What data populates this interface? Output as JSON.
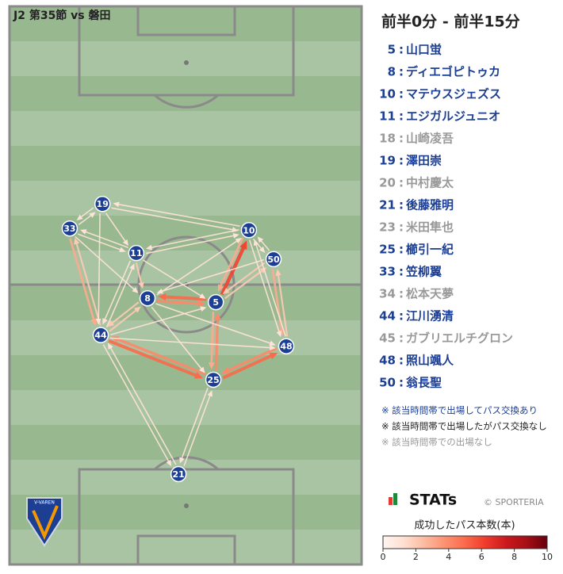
{
  "header": {
    "match": "J2 第35節 vs 磐田",
    "title": "前半0分 - 前半15分"
  },
  "nodes": [
    {
      "label": 19,
      "x": 26.4,
      "y": 35.4
    },
    {
      "label": 33,
      "x": 17.1,
      "y": 39.8
    },
    {
      "label": 10,
      "x": 68.0,
      "y": 40.1
    },
    {
      "label": 11,
      "x": 36.0,
      "y": 44.2
    },
    {
      "label": 50,
      "x": 75.0,
      "y": 45.3
    },
    {
      "label": 8,
      "x": 39.2,
      "y": 52.3
    },
    {
      "label": 5,
      "x": 58.6,
      "y": 53.0
    },
    {
      "label": 44,
      "x": 25.9,
      "y": 58.9
    },
    {
      "label": 48,
      "x": 78.6,
      "y": 60.9
    },
    {
      "label": 25,
      "x": 57.9,
      "y": 66.9
    },
    {
      "label": 21,
      "x": 48.0,
      "y": 83.8
    }
  ],
  "edges": [
    {
      "from": 6,
      "to": 2,
      "count": 6
    },
    {
      "from": 2,
      "to": 6,
      "count": 3
    },
    {
      "from": 6,
      "to": 5,
      "count": 5
    },
    {
      "from": 5,
      "to": 6,
      "count": 4
    },
    {
      "from": 7,
      "to": 9,
      "count": 5
    },
    {
      "from": 9,
      "to": 7,
      "count": 4
    },
    {
      "from": 9,
      "to": 8,
      "count": 5
    },
    {
      "from": 8,
      "to": 9,
      "count": 4
    },
    {
      "from": 6,
      "to": 9,
      "count": 3
    },
    {
      "from": 9,
      "to": 6,
      "count": 4
    },
    {
      "from": 4,
      "to": 8,
      "count": 3
    },
    {
      "from": 8,
      "to": 4,
      "count": 2
    },
    {
      "from": 1,
      "to": 7,
      "count": 3
    },
    {
      "from": 7,
      "to": 1,
      "count": 2
    },
    {
      "from": 4,
      "to": 6,
      "count": 2
    },
    {
      "from": 6,
      "to": 4,
      "count": 2
    },
    {
      "from": 3,
      "to": 5,
      "count": 2
    },
    {
      "from": 5,
      "to": 7,
      "count": 2
    },
    {
      "from": 7,
      "to": 5,
      "count": 2
    },
    {
      "from": 2,
      "to": 4,
      "count": 1
    },
    {
      "from": 4,
      "to": 2,
      "count": 1
    },
    {
      "from": 0,
      "to": 2,
      "count": 1
    },
    {
      "from": 2,
      "to": 0,
      "count": 1
    },
    {
      "from": 0,
      "to": 1,
      "count": 1
    },
    {
      "from": 1,
      "to": 0,
      "count": 1
    },
    {
      "from": 1,
      "to": 3,
      "count": 1
    },
    {
      "from": 3,
      "to": 1,
      "count": 1
    },
    {
      "from": 0,
      "to": 3,
      "count": 1
    },
    {
      "from": 1,
      "to": 5,
      "count": 1
    },
    {
      "from": 3,
      "to": 7,
      "count": 1
    },
    {
      "from": 7,
      "to": 3,
      "count": 1
    },
    {
      "from": 3,
      "to": 2,
      "count": 1
    },
    {
      "from": 2,
      "to": 3,
      "count": 1
    },
    {
      "from": 5,
      "to": 2,
      "count": 1
    },
    {
      "from": 3,
      "to": 6,
      "count": 1
    },
    {
      "from": 7,
      "to": 6,
      "count": 1
    },
    {
      "from": 7,
      "to": 8,
      "count": 1
    },
    {
      "from": 7,
      "to": 10,
      "count": 1
    },
    {
      "from": 10,
      "to": 7,
      "count": 1
    },
    {
      "from": 9,
      "to": 10,
      "count": 1
    },
    {
      "from": 10,
      "to": 9,
      "count": 1
    },
    {
      "from": 5,
      "to": 9,
      "count": 1
    },
    {
      "from": 5,
      "to": 8,
      "count": 1
    },
    {
      "from": 0,
      "to": 7,
      "count": 1
    },
    {
      "from": 8,
      "to": 2,
      "count": 1
    },
    {
      "from": 2,
      "to": 8,
      "count": 1
    },
    {
      "from": 4,
      "to": 5,
      "count": 1
    }
  ],
  "separator": ":",
  "players": [
    {
      "number": 5,
      "name": "山口蛍",
      "color": "#1c3f94"
    },
    {
      "number": 8,
      "name": "ディエゴピトゥカ",
      "color": "#1c3f94"
    },
    {
      "number": 10,
      "name": "マテウスジェズス",
      "color": "#1c3f94"
    },
    {
      "number": 11,
      "name": "エジガルジュニオ",
      "color": "#1c3f94"
    },
    {
      "number": 18,
      "name": "山崎凌吾",
      "color": "#999999"
    },
    {
      "number": 19,
      "name": "澤田崇",
      "color": "#1c3f94"
    },
    {
      "number": 20,
      "name": "中村慶太",
      "color": "#999999"
    },
    {
      "number": 21,
      "name": "後藤雅明",
      "color": "#1c3f94"
    },
    {
      "number": 23,
      "name": "米田隼也",
      "color": "#999999"
    },
    {
      "number": 25,
      "name": "櫛引一紀",
      "color": "#1c3f94"
    },
    {
      "number": 33,
      "name": "笠柳翼",
      "color": "#1c3f94"
    },
    {
      "number": 34,
      "name": "松本天夢",
      "color": "#999999"
    },
    {
      "number": 44,
      "name": "江川湧清",
      "color": "#1c3f94"
    },
    {
      "number": 45,
      "name": "ガブリエルチグロン",
      "color": "#999999"
    },
    {
      "number": 48,
      "name": "照山颯人",
      "color": "#1c3f94"
    },
    {
      "number": 50,
      "name": "翁長聖",
      "color": "#1c3f94"
    }
  ],
  "notes": [
    {
      "text": "※ 該当時間帯で出場してパス交換あり",
      "color": "#1c3f94"
    },
    {
      "text": "※ 該当時間帯で出場したがパス交換なし",
      "color": "#222222"
    },
    {
      "text": "※ 該当時間帯での出場なし",
      "color": "#999999"
    }
  ],
  "brand": {
    "logo": "STATs",
    "credit": "© SPORTERIA",
    "badge": "V-VAREN"
  },
  "colorbar": {
    "label": "成功したパス本数(本)",
    "range": [
      0,
      10
    ],
    "ticks": [
      0,
      2,
      4,
      6,
      8,
      10
    ],
    "colorscale": [
      "#fff5f0",
      "#fee0d2",
      "#fcbba1",
      "#fc9272",
      "#fb6a4a",
      "#ef3b2c",
      "#cb181d",
      "#a50f15",
      "#67000d"
    ]
  }
}
